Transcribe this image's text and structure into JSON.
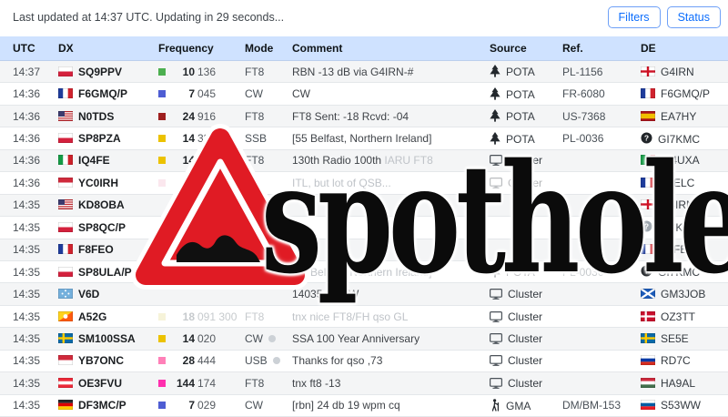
{
  "page": {
    "updated_text": "Last updated at 14:37 UTC. Updating in 29 seconds..."
  },
  "toolbar": {
    "filters_label": "Filters",
    "status_label": "Status"
  },
  "table": {
    "columns": [
      "UTC",
      "DX",
      "Frequency",
      "Mode",
      "Comment",
      "Source",
      "Ref.",
      "DE"
    ]
  },
  "colors": {
    "header_bg": "#cfe2ff",
    "accent_blue": "#0d6efd",
    "stripe": "#f4f5f6",
    "faded_text": "#c6cacd"
  },
  "watermark": {
    "text": "spothole",
    "sign": "red-warning-triangle-with-pothole"
  },
  "rows": [
    {
      "utc": "14:37",
      "dx": "SQ9PPV",
      "dx_flag": "pl",
      "band_color": "#4caf50",
      "mhz": "10",
      "khz": "136",
      "mode": "FT8",
      "comment": "RBN -13 dB via G4IRN-#",
      "source": "POTA",
      "source_icon": "tree",
      "ref": "PL-1156",
      "de": "G4IRN",
      "de_flag": "eng"
    },
    {
      "utc": "14:36",
      "dx": "F6GMQ/P",
      "dx_flag": "fr",
      "band_color": "#4e5dd3",
      "mhz": "7",
      "khz": "045",
      "mode": "CW",
      "comment": "CW",
      "source": "POTA",
      "source_icon": "tree",
      "ref": "FR-6080",
      "de": "F6GMQ/P",
      "de_flag": "fr"
    },
    {
      "utc": "14:36",
      "dx": "N0TDS",
      "dx_flag": "us",
      "band_color": "#9e1f1f",
      "mhz": "24",
      "khz": "916",
      "mode": "FT8",
      "comment": "FT8 Sent: -18 Rcvd: -04",
      "source": "POTA",
      "source_icon": "tree",
      "ref": "US-7368",
      "de": "EA7HY",
      "de_flag": "es"
    },
    {
      "utc": "14:36",
      "dx": "SP8PZA",
      "dx_flag": "pl",
      "band_color": "#ecc200",
      "mhz": "14",
      "khz": "337",
      "mode": "SSB",
      "comment": "[55 Belfast, Northern Ireland]",
      "source": "POTA",
      "source_icon": "tree",
      "ref": "PL-0036",
      "de": "GI7KMC",
      "de_flag": "question-circle",
      "de_icon_color": "#212529"
    },
    {
      "utc": "14:36",
      "dx": "IQ4FE",
      "dx_flag": "it",
      "band_color": "#ecc200",
      "mhz": "14",
      "khz": "074",
      "mode": "FT8",
      "comment": "130th Radio 100th ",
      "comment_light": "IARU FT8",
      "source": "Cluster",
      "source_icon": "monitor",
      "ref": "",
      "de": "IK4UXA",
      "de_flag": "it"
    },
    {
      "utc": "14:36",
      "dx": "YC0IRH",
      "dx_flag": "id",
      "band_color": "#f5c3d5",
      "mhz": "",
      "khz": "",
      "mode": "",
      "faded": true,
      "comment": "",
      "comment_light": "ITL, but lot of QSB...",
      "source": "Cluster",
      "source_icon": "monitor",
      "source_faded": true,
      "ref": "",
      "de": "F4ELC",
      "de_flag": "fr"
    },
    {
      "utc": "14:35",
      "dx": "KD8OBA",
      "dx_flag": "us",
      "mhz": "",
      "khz": "",
      "mode": "",
      "comment": "",
      "source": "",
      "ref": "",
      "de": "G4IRN",
      "de_flag": "eng"
    },
    {
      "utc": "14:35",
      "dx": "SP8QC/P",
      "dx_flag": "pl",
      "mhz": "",
      "khz": "",
      "mode": "",
      "comment": "",
      "source": "",
      "ref": "",
      "de": "GI7KMC",
      "de_flag": "question-circle",
      "de_icon_color": "#99a2aa"
    },
    {
      "utc": "14:35",
      "dx": "F8FEO",
      "dx_flag": "fr",
      "mhz": "",
      "khz": "",
      "mode": "",
      "comment": "",
      "source": "",
      "ref": "",
      "de": "F8FEO",
      "de_flag": "fr"
    },
    {
      "utc": "14:35",
      "dx": "SP8ULA/P",
      "dx_flag": "pl",
      "mhz": "",
      "khz": "",
      "mode": "",
      "faded": true,
      "comment": "",
      "comment_light": "[55 Belfast, Northern Ireland]",
      "source": "POTA",
      "source_icon": "tree",
      "source_faded": true,
      "ref": "PL-0036",
      "ref_faded": true,
      "de": "GI7KMC",
      "de_flag": "question-circle",
      "de_icon_color": "#212529"
    },
    {
      "utc": "14:35",
      "dx": "V6D",
      "dx_flag": "fm",
      "mhz": "",
      "khz": "",
      "mode": "",
      "comment": "14035.20 CW",
      "source": "Cluster",
      "source_icon": "monitor",
      "ref": "",
      "de": "GM3JOB",
      "de_flag": "sct"
    },
    {
      "utc": "14:35",
      "dx": "A52G",
      "dx_flag": "bt",
      "band_color": "#e8e09f",
      "mhz": "18",
      "khz": "091",
      "hz": "300",
      "mode": "FT8",
      "faded": true,
      "comment": "",
      "comment_light": "tnx nice FT8/FH qso GL",
      "source": "Cluster",
      "source_icon": "monitor",
      "ref": "",
      "de": "OZ3TT",
      "de_flag": "dk"
    },
    {
      "utc": "14:35",
      "dx": "SM100SSA",
      "dx_flag": "se",
      "band_color": "#ecc200",
      "mhz": "14",
      "khz": "020",
      "mode": "CW",
      "mode_help_icon": true,
      "comment": "SSA 100 Year Anniversary",
      "source": "Cluster",
      "source_icon": "monitor",
      "ref": "",
      "de": "SE5E",
      "de_flag": "se"
    },
    {
      "utc": "14:35",
      "dx": "YB7ONC",
      "dx_flag": "id",
      "band_color": "#ff80b8",
      "mhz": "28",
      "khz": "444",
      "mode": "USB",
      "mode_help_icon": true,
      "comment": "Thanks for qso ,73",
      "source": "Cluster",
      "source_icon": "monitor",
      "ref": "",
      "de": "RD7C",
      "de_flag": "ru"
    },
    {
      "utc": "14:35",
      "dx": "OE3FVU",
      "dx_flag": "at",
      "band_color": "#ff2fae",
      "mhz": "144",
      "khz": "174",
      "mode": "FT8",
      "comment": "tnx ft8 -13",
      "source": "Cluster",
      "source_icon": "monitor",
      "ref": "",
      "de": "HA9AL",
      "de_flag": "hu"
    },
    {
      "utc": "14:35",
      "dx": "DF3MC/P",
      "dx_flag": "de",
      "band_color": "#4e5dd3",
      "mhz": "7",
      "khz": "029",
      "mode": "CW",
      "comment": "[rbn] 24 db 19 wpm cq",
      "source": "GMA",
      "source_icon": "hiker",
      "ref": "DM/BM-153",
      "de": "S53WW",
      "de_flag": "si"
    }
  ]
}
